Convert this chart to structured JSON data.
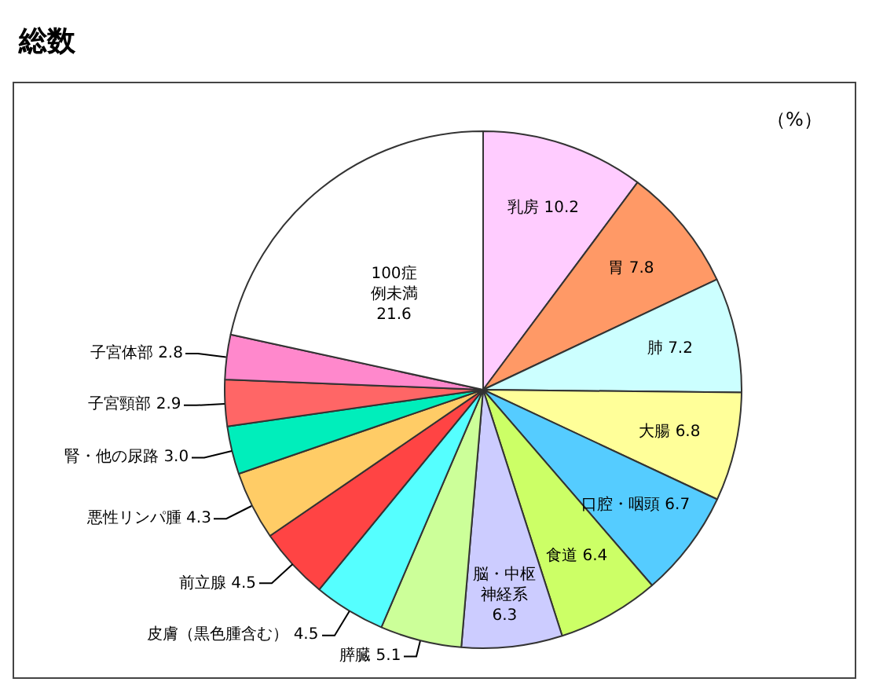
{
  "chart_data": {
    "type": "pie",
    "title": "総数",
    "annotations": [
      "（%）"
    ],
    "categories": [
      "乳房",
      "胃",
      "肺",
      "大腸",
      "口腔・咽頭",
      "食道",
      "脳・中枢神経系",
      "膵臓",
      "皮膚（黒色腫含む）",
      "前立腺",
      "悪性リンパ腫",
      "腎・他の尿路",
      "子宮頸部",
      "子宮体部",
      "100症例未満"
    ],
    "values": [
      10.2,
      7.8,
      7.2,
      6.8,
      6.7,
      6.4,
      6.3,
      5.1,
      4.5,
      4.5,
      4.3,
      3.0,
      2.9,
      2.8,
      21.6
    ],
    "value_labels": [
      "10.2",
      "7.8",
      "7.2",
      "6.8",
      "6.7",
      "6.4",
      "6.3",
      "5.1",
      "4.5",
      "4.5",
      "4.3",
      "3.0",
      "2.9",
      "2.8",
      "21.6"
    ],
    "colors": [
      "#ffccff",
      "#ff9966",
      "#ccffff",
      "#ffff99",
      "#55ccff",
      "#ccff66",
      "#ccccff",
      "#ccff99",
      "#55ffff",
      "#ff4444",
      "#ffcc66",
      "#00eebb",
      "#ff6666",
      "#ff88cc",
      "#ffffff"
    ]
  }
}
